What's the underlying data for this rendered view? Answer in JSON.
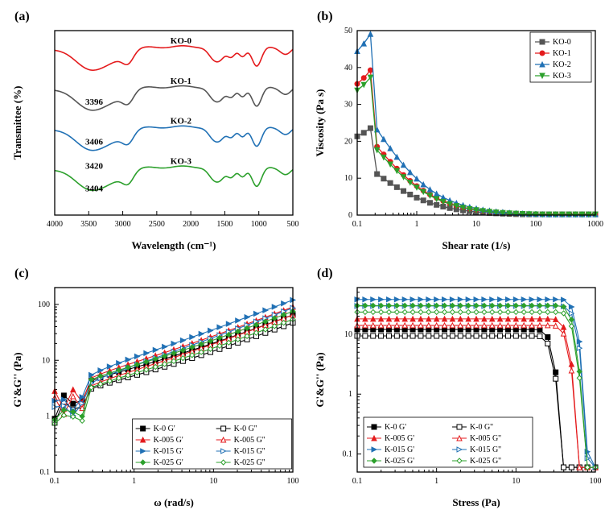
{
  "panels": {
    "a": {
      "label": "(a)",
      "xlabel": "Wavelength (cm⁻¹)",
      "ylabel": "Transmittee (%)",
      "xlim": [
        4000,
        500
      ],
      "xticks": [
        4000,
        3500,
        3000,
        2500,
        2000,
        1500,
        1000,
        500
      ],
      "colors": {
        "KO-0": "#e41a1c",
        "KO-1": "#555555",
        "KO-2": "#2171b5",
        "KO-3": "#2ca02c"
      },
      "series_labels": [
        "KO-0",
        "KO-1",
        "KO-2",
        "KO-3"
      ],
      "peak_labels": [
        {
          "text": "3396",
          "x": 3396,
          "series": 1
        },
        {
          "text": "3406",
          "x": 3406,
          "series": 2
        },
        {
          "text": "3420",
          "x": 3420,
          "series": 3
        },
        {
          "text": "3404",
          "x": 3404,
          "series": 3
        }
      ],
      "line_width": 1.6
    },
    "b": {
      "label": "(b)",
      "xlabel": "Shear rate (1/s)",
      "ylabel": "Viscosity (Pa s)",
      "xlim": [
        0.1,
        1000
      ],
      "ylim": [
        0,
        50
      ],
      "yticks": [
        0,
        10,
        20,
        30,
        40,
        50
      ],
      "xticks": [
        0.1,
        1,
        10,
        100,
        1000
      ],
      "series": [
        {
          "name": "KO-0",
          "color": "#555555",
          "marker": "square",
          "peak": 24
        },
        {
          "name": "KO-1",
          "color": "#e41a1c",
          "marker": "circle",
          "peak": 40
        },
        {
          "name": "KO-2",
          "color": "#2171b5",
          "marker": "triangle",
          "peak": 50
        },
        {
          "name": "KO-3",
          "color": "#2ca02c",
          "marker": "invtri",
          "peak": 38
        }
      ],
      "line_width": 1.3,
      "marker_size": 3
    },
    "c": {
      "label": "(c)",
      "xlabel": "ω (rad/s)",
      "ylabel": "G'&G'' (Pa)",
      "xlim": [
        0.1,
        100
      ],
      "ylim": [
        0.1,
        200
      ],
      "xticks": [
        0.1,
        1,
        10,
        100
      ],
      "yticks": [
        0.1,
        1,
        10,
        100
      ],
      "series": [
        {
          "name": "K-0 G'",
          "color": "#000000",
          "marker": "square",
          "filled": true
        },
        {
          "name": "K-0 G''",
          "color": "#000000",
          "marker": "square",
          "filled": false
        },
        {
          "name": "K-005 G'",
          "color": "#e41a1c",
          "marker": "triangle",
          "filled": true
        },
        {
          "name": "K-005 G''",
          "color": "#e41a1c",
          "marker": "triangle",
          "filled": false
        },
        {
          "name": "K-015 G'",
          "color": "#2171b5",
          "marker": "rtri",
          "filled": true
        },
        {
          "name": "K-015 G''",
          "color": "#2171b5",
          "marker": "rtri",
          "filled": false
        },
        {
          "name": "K-025 G'",
          "color": "#2ca02c",
          "marker": "diamond",
          "filled": true
        },
        {
          "name": "K-025 G''",
          "color": "#2ca02c",
          "marker": "diamond",
          "filled": false
        }
      ],
      "line_width": 1.1,
      "marker_size": 3
    },
    "d": {
      "label": "(d)",
      "xlabel": "Stress (Pa)",
      "ylabel": "G'&G'' (Pa)",
      "xlim": [
        0.1,
        100
      ],
      "ylim": [
        0.05,
        60
      ],
      "xticks": [
        0.1,
        1,
        10,
        100
      ],
      "yticks": [
        0.1,
        1,
        10
      ],
      "series": [
        {
          "name": "K-0",
          "g1": "G'",
          "g2": "G''",
          "color": "#000000",
          "marker": "square",
          "plateau": 12,
          "drop": 35
        },
        {
          "name": "K-005",
          "g1": "G'",
          "g2": "G''",
          "color": "#e41a1c",
          "marker": "triangle",
          "plateau": 18,
          "drop": 55
        },
        {
          "name": "K-015",
          "g1": "G'",
          "g2": "G''",
          "color": "#2171b5",
          "marker": "rtri",
          "plateau": 38,
          "drop": 70
        },
        {
          "name": "K-025",
          "g1": "G'",
          "g2": "G''",
          "color": "#2ca02c",
          "marker": "diamond",
          "plateau": 30,
          "drop": 65
        }
      ],
      "line_width": 1.1,
      "marker_size": 3
    }
  },
  "global": {
    "background_color": "#ffffff",
    "axis_color": "#000000",
    "font_family": "Times New Roman",
    "label_fontsize": 13,
    "tick_fontsize": 10
  }
}
